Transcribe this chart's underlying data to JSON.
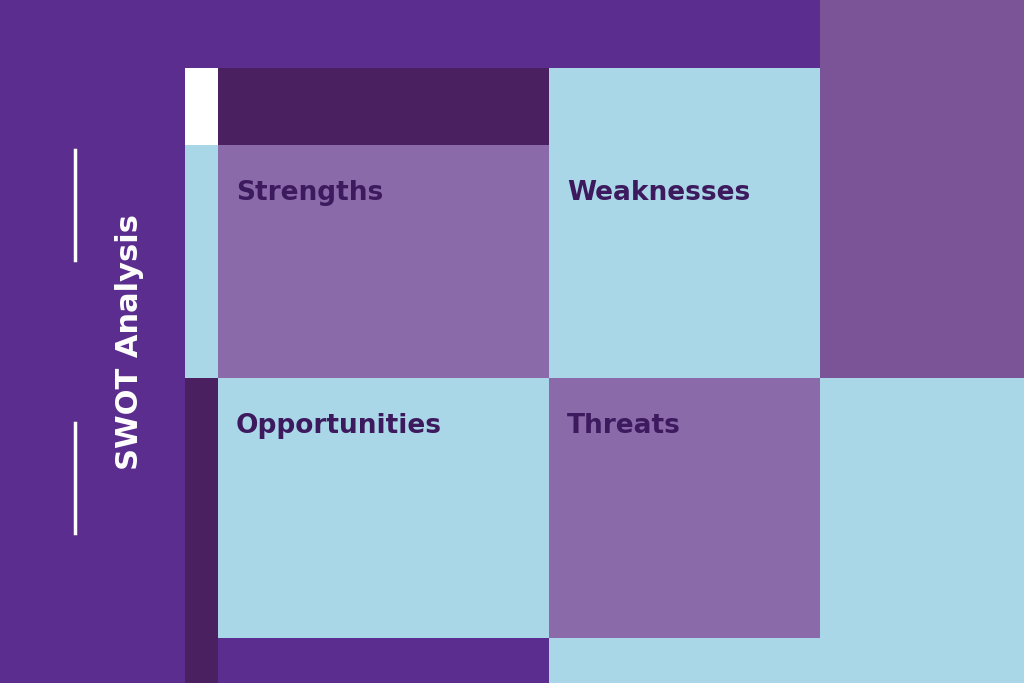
{
  "bg_color_main": "#5b2d8e",
  "bg_color_light": "#a8d8e8",
  "bg_color_medium_purple": "#7d5a9a",
  "light_blue": "#aad7e8",
  "medium_purple": "#8b6aaa",
  "dark_purple": "#4a2060",
  "white": "#ffffff",
  "text_color": "#3d1a5e",
  "title_color": "#ffffff",
  "title": "SWOT Analysis",
  "labels": [
    "Strengths",
    "Weaknesses",
    "Opportunities",
    "Threats"
  ],
  "label_fontsize": 19,
  "title_fontsize": 22
}
